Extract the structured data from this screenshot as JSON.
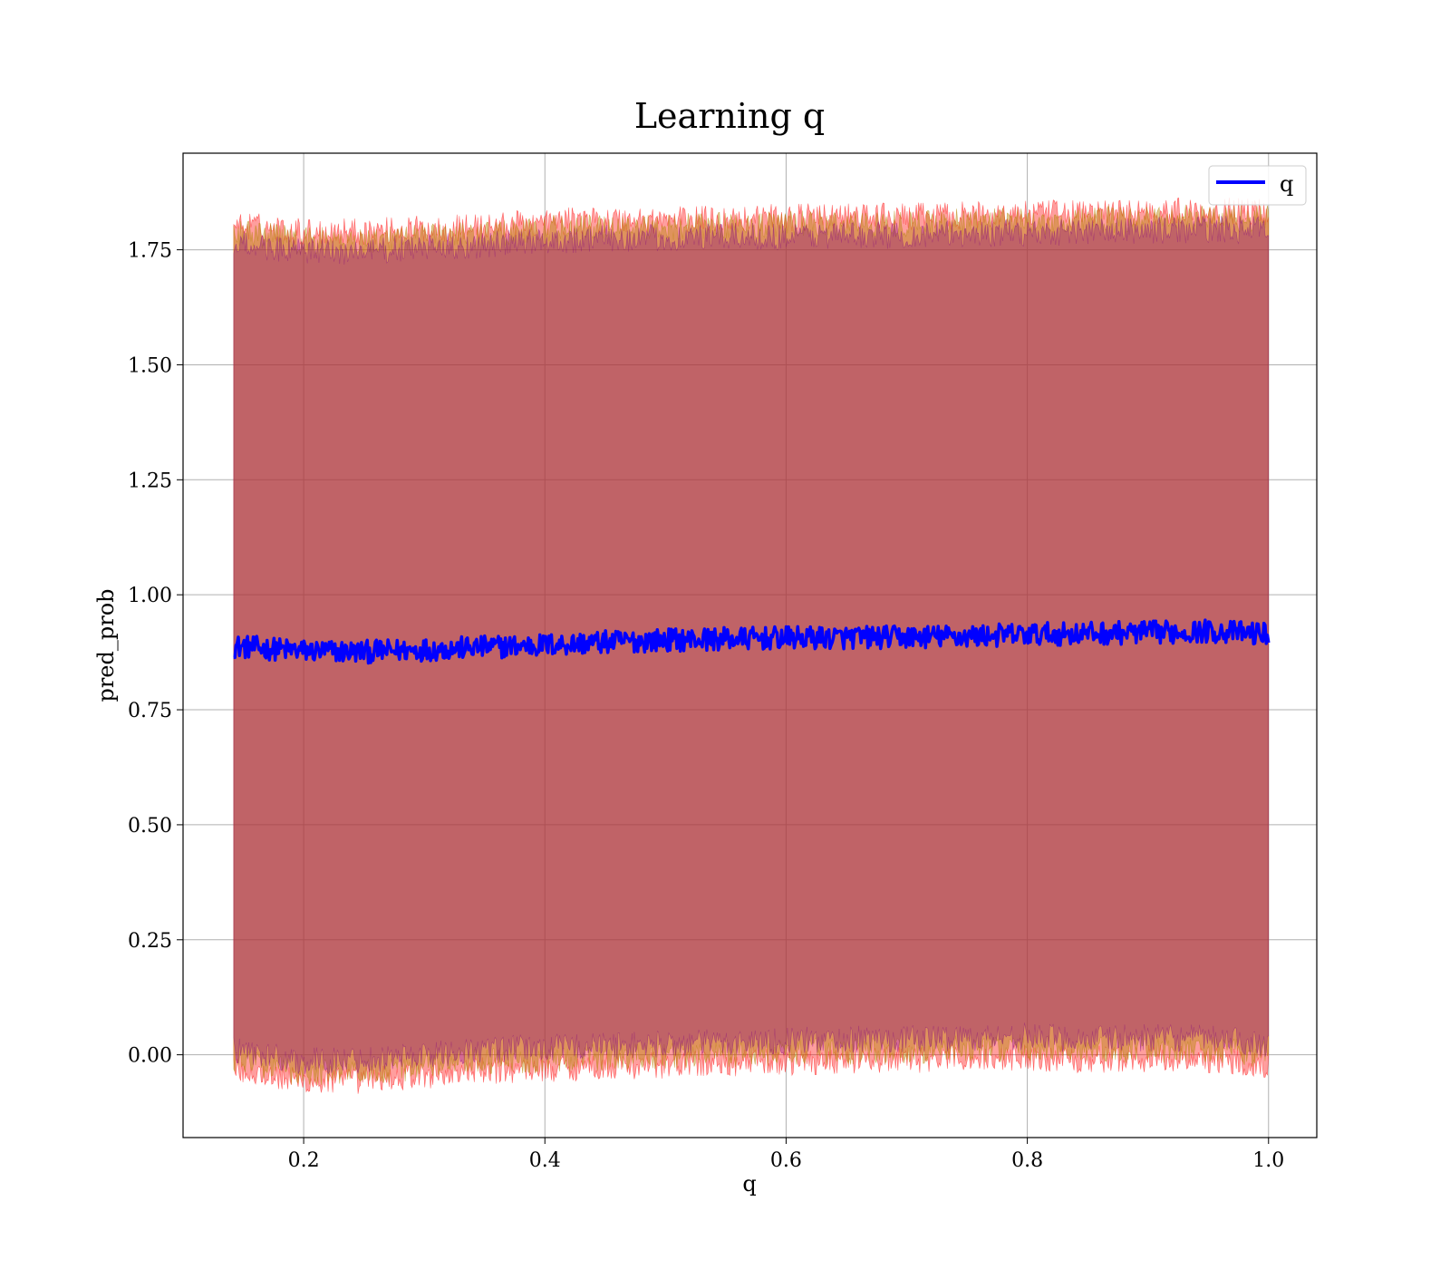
{
  "chart_data": {
    "type": "line",
    "title": "Learning q",
    "xlabel": "q",
    "ylabel": "pred_prob",
    "xlim": [
      0.1,
      1.04
    ],
    "ylim": [
      -0.18,
      1.96
    ],
    "xticks": [
      "0.2",
      "0.4",
      "0.6",
      "0.8",
      "1.0"
    ],
    "yticks": [
      "0.00",
      "0.25",
      "0.50",
      "0.75",
      "1.00",
      "1.25",
      "1.50",
      "1.75"
    ],
    "grid": true,
    "legend": {
      "position": "top-right",
      "entries": [
        "q"
      ]
    },
    "x_range": [
      0.142,
      1.0
    ],
    "series": [
      {
        "name": "q",
        "color": "#0000ff",
        "x": [
          0.142,
          0.2,
          0.25,
          0.3,
          0.35,
          0.4,
          0.45,
          0.5,
          0.55,
          0.6,
          0.65,
          0.7,
          0.75,
          0.8,
          0.85,
          0.9,
          0.95,
          1.0
        ],
        "y": [
          0.888,
          0.878,
          0.876,
          0.881,
          0.886,
          0.891,
          0.897,
          0.902,
          0.904,
          0.906,
          0.907,
          0.908,
          0.91,
          0.914,
          0.916,
          0.918,
          0.921,
          0.915
        ]
      }
    ],
    "bands": [
      {
        "color": "#ff0000",
        "opacity": 0.38,
        "upper": [
          1.805,
          1.79,
          1.79,
          1.795,
          1.8,
          1.81,
          1.815,
          1.815,
          1.818,
          1.82,
          1.822,
          1.822,
          1.825,
          1.827,
          1.83,
          1.832,
          1.835,
          1.833
        ],
        "lower": [
          -0.03,
          -0.06,
          -0.055,
          -0.045,
          -0.035,
          -0.03,
          -0.025,
          -0.022,
          -0.018,
          -0.015,
          -0.012,
          -0.01,
          -0.008,
          -0.005,
          -0.01,
          -0.008,
          -0.01,
          -0.02
        ]
      },
      {
        "color": "#b8860b",
        "opacity": 0.45,
        "upper": [
          1.79,
          1.77,
          1.77,
          1.78,
          1.785,
          1.795,
          1.8,
          1.8,
          1.802,
          1.805,
          1.807,
          1.807,
          1.81,
          1.812,
          1.815,
          1.817,
          1.82,
          1.818
        ],
        "lower": [
          -0.01,
          -0.04,
          -0.035,
          -0.025,
          -0.015,
          -0.01,
          -0.005,
          -0.002,
          0.002,
          0.005,
          0.008,
          0.01,
          0.012,
          0.015,
          0.01,
          0.012,
          0.01,
          0.0
        ]
      },
      {
        "color": "#800080",
        "opacity": 0.32,
        "upper": [
          1.765,
          1.745,
          1.745,
          1.755,
          1.76,
          1.77,
          1.775,
          1.775,
          1.778,
          1.78,
          1.782,
          1.782,
          1.785,
          1.787,
          1.79,
          1.792,
          1.795,
          1.793
        ],
        "lower": [
          0.012,
          -0.015,
          -0.01,
          0.0,
          0.01,
          0.015,
          0.02,
          0.023,
          0.027,
          0.03,
          0.033,
          0.035,
          0.037,
          0.04,
          0.035,
          0.037,
          0.035,
          0.025
        ]
      }
    ]
  }
}
